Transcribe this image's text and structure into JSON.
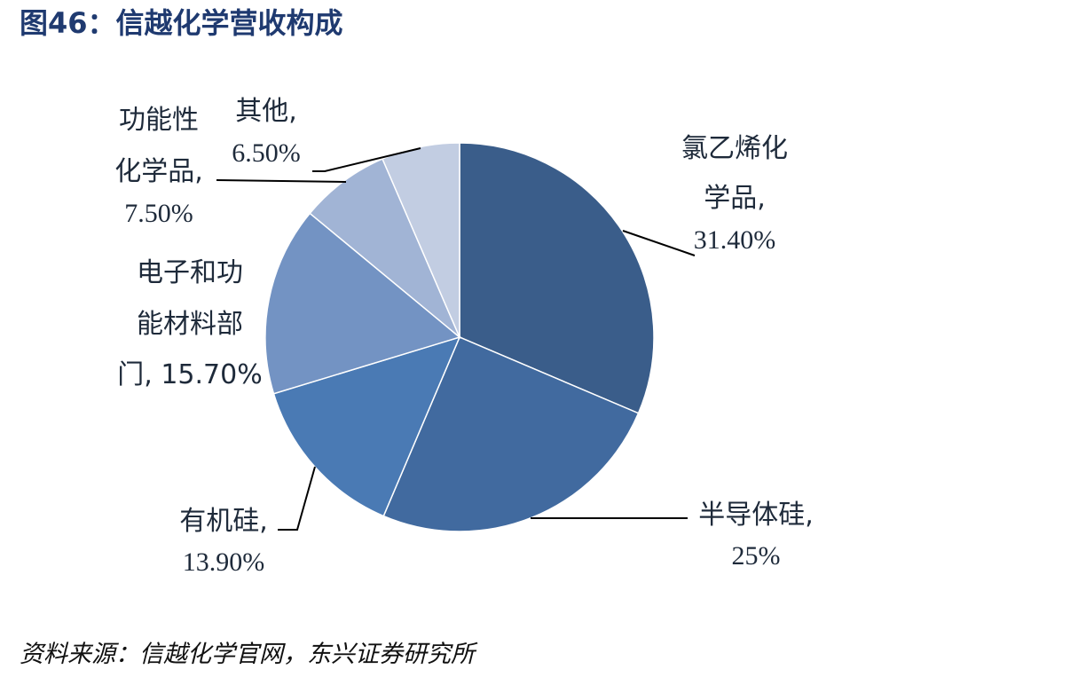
{
  "title": "图46：信越化学营收构成",
  "source": "资料来源：信越化学官网，东兴证券研究所",
  "chart_data": {
    "type": "pie",
    "title": "图46：信越化学营收构成",
    "start_angle_deg": 0,
    "direction": "clockwise",
    "slices": [
      {
        "name": "氯乙烯化学品",
        "value": 31.4,
        "value_label": "31.40%",
        "label_lines": [
          "氯乙烯化",
          "学品,",
          "31.40%"
        ],
        "color": "#3a5d8a"
      },
      {
        "name": "半导体硅",
        "value": 25.0,
        "value_label": "25%",
        "label_lines": [
          "半导体硅,",
          "25%"
        ],
        "color": "#416a9f"
      },
      {
        "name": "有机硅",
        "value": 13.9,
        "value_label": "13.90%",
        "label_lines": [
          "有机硅,",
          "13.90%"
        ],
        "color": "#4a7ab4"
      },
      {
        "name": "电子和功能材料部门",
        "value": 15.7,
        "value_label": "15.70%",
        "label_lines": [
          "电子和功",
          "能材料部",
          "门, 15.70%"
        ],
        "color": "#7393c3"
      },
      {
        "name": "功能性化学品",
        "value": 7.5,
        "value_label": "7.50%",
        "label_lines": [
          "功能性",
          "化学品,",
          "7.50%"
        ],
        "color": "#a1b4d5"
      },
      {
        "name": "其他",
        "value": 6.5,
        "value_label": "6.50%",
        "label_lines": [
          "其他,",
          "6.50%"
        ],
        "color": "#c2cde2"
      }
    ]
  }
}
